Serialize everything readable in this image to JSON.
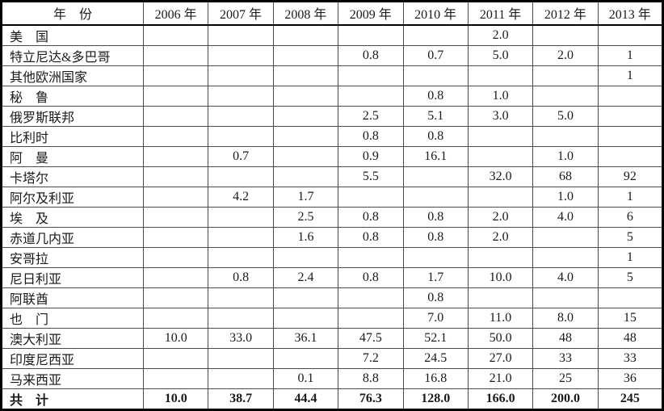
{
  "page": {
    "background": "#ffffff",
    "outer_border_color": "#000000",
    "grid_line_color": "#4a4a4a"
  },
  "table": {
    "header": {
      "label": "年　份",
      "years": [
        "2006 年",
        "2007 年",
        "2008 年",
        "2009 年",
        "2010 年",
        "2011 年",
        "2012 年",
        "2013 年"
      ]
    },
    "rows": [
      {
        "label": "美　国",
        "values": [
          "",
          "",
          "",
          "",
          "",
          "2.0",
          "",
          ""
        ]
      },
      {
        "label": "特立尼达&多巴哥",
        "values": [
          "",
          "",
          "",
          "0.8",
          "0.7",
          "5.0",
          "2.0",
          "1"
        ]
      },
      {
        "label": "其他欧洲国家",
        "values": [
          "",
          "",
          "",
          "",
          "",
          "",
          "",
          "1"
        ]
      },
      {
        "label": "秘　鲁",
        "values": [
          "",
          "",
          "",
          "",
          "0.8",
          "1.0",
          "",
          ""
        ]
      },
      {
        "label": "俄罗斯联邦",
        "values": [
          "",
          "",
          "",
          "2.5",
          "5.1",
          "3.0",
          "5.0",
          ""
        ]
      },
      {
        "label": "比利时",
        "values": [
          "",
          "",
          "",
          "0.8",
          "0.8",
          "",
          "",
          ""
        ]
      },
      {
        "label": "阿　曼",
        "values": [
          "",
          "0.7",
          "",
          "0.9",
          "16.1",
          "",
          "1.0",
          ""
        ]
      },
      {
        "label": "卡塔尔",
        "values": [
          "",
          "",
          "",
          "5.5",
          "",
          "32.0",
          "68",
          "92"
        ]
      },
      {
        "label": "阿尔及利亚",
        "values": [
          "",
          "4.2",
          "1.7",
          "",
          "",
          "",
          "1.0",
          "1"
        ]
      },
      {
        "label": "埃　及",
        "values": [
          "",
          "",
          "2.5",
          "0.8",
          "0.8",
          "2.0",
          "4.0",
          "6"
        ]
      },
      {
        "label": "赤道几内亚",
        "values": [
          "",
          "",
          "1.6",
          "0.8",
          "0.8",
          "2.0",
          "",
          "5"
        ]
      },
      {
        "label": "安哥拉",
        "values": [
          "",
          "",
          "",
          "",
          "",
          "",
          "",
          "1"
        ]
      },
      {
        "label": "尼日利亚",
        "values": [
          "",
          "0.8",
          "2.4",
          "0.8",
          "1.7",
          "10.0",
          "4.0",
          "5"
        ]
      },
      {
        "label": "阿联酋",
        "values": [
          "",
          "",
          "",
          "",
          "0.8",
          "",
          "",
          ""
        ]
      },
      {
        "label": "也　门",
        "values": [
          "",
          "",
          "",
          "",
          "7.0",
          "11.0",
          "8.0",
          "15"
        ]
      },
      {
        "label": "澳大利亚",
        "values": [
          "10.0",
          "33.0",
          "36.1",
          "47.5",
          "52.1",
          "50.0",
          "48",
          "48"
        ]
      },
      {
        "label": "印度尼西亚",
        "values": [
          "",
          "",
          "",
          "7.2",
          "24.5",
          "27.0",
          "33",
          "33"
        ]
      },
      {
        "label": "马来西亚",
        "values": [
          "",
          "",
          "0.1",
          "8.8",
          "16.8",
          "21.0",
          "25",
          "36"
        ]
      }
    ],
    "total_row": {
      "label": "共　计",
      "values": [
        "10.0",
        "38.7",
        "44.4",
        "76.3",
        "128.0",
        "166.0",
        "200.0",
        "245"
      ]
    }
  }
}
